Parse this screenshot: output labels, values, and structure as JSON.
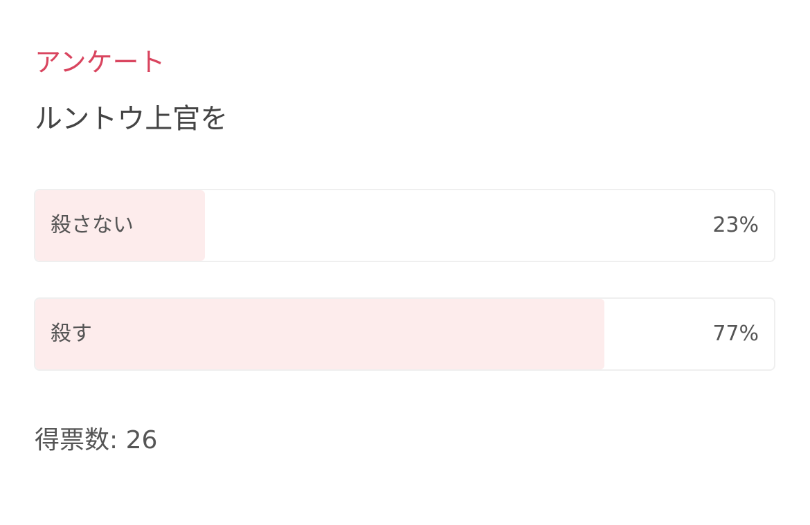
{
  "poll": {
    "kicker": "アンケート",
    "question": "ルントウ上官を",
    "options": [
      {
        "label": "殺さない",
        "percent_label": "23%",
        "percent": 23
      },
      {
        "label": "殺す",
        "percent_label": "77%",
        "percent": 77
      }
    ],
    "vote_count_label": "得票数: 26"
  },
  "colors": {
    "accent": "#d9455f",
    "fill": "#fdecec",
    "border": "#efefef"
  }
}
